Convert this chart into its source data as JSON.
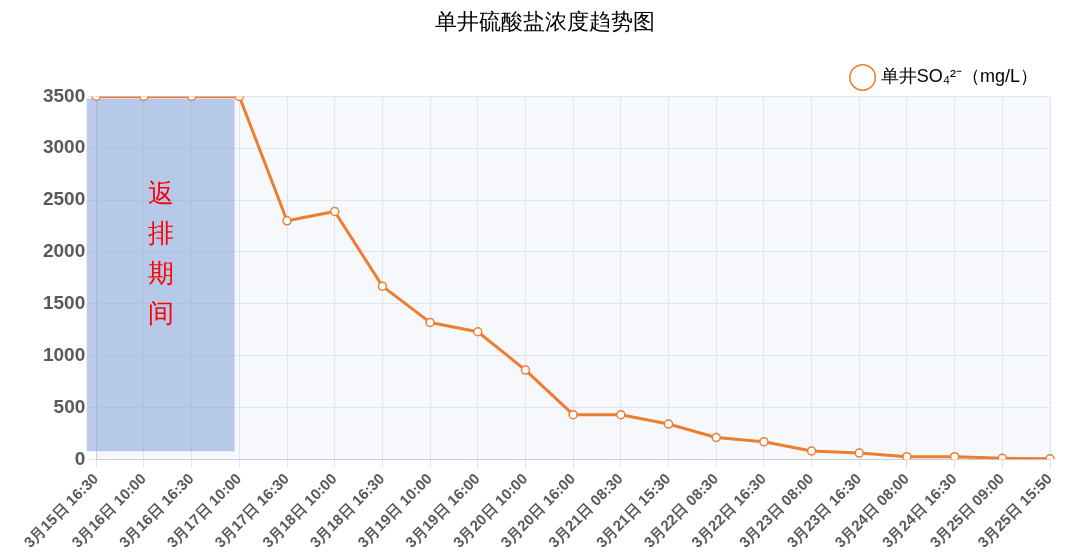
{
  "chart_data": {
    "type": "line",
    "title": "单井硫酸盐浓度趋势图",
    "categories": [
      "3月15日 16:30",
      "3月16日 10:00",
      "3月16日 16:30",
      "3月17日 10:00",
      "3月17日 16:30",
      "3月18日 10:00",
      "3月18日 16:30",
      "3月19日 10:00",
      "3月19日 16:00",
      "3月20日 10:00",
      "3月20日 16:00",
      "3月21日 08:30",
      "3月21日 15:30",
      "3月22日 08:30",
      "3月22日 16:30",
      "3月23日 08:00",
      "3月23日 16:30",
      "3月24日 08:00",
      "3月24日 16:30",
      "3月25日 09:00",
      "3月25日 15:50"
    ],
    "series": [
      {
        "name": "单井SO₄²⁻（mg/L）",
        "color": "#ed7d31",
        "values": [
          3500,
          3500,
          3500,
          3500,
          2300,
          2390,
          1670,
          1320,
          1230,
          860,
          430,
          430,
          340,
          210,
          170,
          80,
          60,
          25,
          25,
          10,
          5
        ]
      }
    ],
    "ylim": [
      0,
      3500
    ],
    "yticks": [
      0,
      500,
      1000,
      1500,
      2000,
      2500,
      3000,
      3500
    ],
    "grid": true,
    "legend": "top right",
    "marker": "circle",
    "line_style": "solid",
    "bands": [
      {
        "axis": "x",
        "from": "3月15日 16:30",
        "to": "3月17日 10:00",
        "label": "返排期间",
        "color": "#8eaadb"
      }
    ]
  }
}
